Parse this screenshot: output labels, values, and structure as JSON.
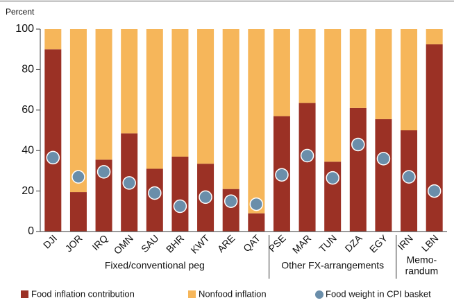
{
  "chart_data": {
    "type": "stacked_bar_dot",
    "y_label": "Percent",
    "categories": [
      "DJI",
      "JOR",
      "IRQ",
      "OMN",
      "SAU",
      "BHR",
      "KWT",
      "ARE",
      "QAT",
      "PSE",
      "MAR",
      "TUN",
      "DZA",
      "EGY",
      "IRN",
      "LBN"
    ],
    "series": [
      {
        "name": "Food inflation contribution",
        "color": "#9b3125",
        "kind": "bar",
        "values": [
          90,
          19.5,
          35.5,
          48.5,
          31,
          37,
          33.5,
          21,
          9,
          57,
          63.5,
          34.5,
          61,
          55.5,
          50,
          92.5
        ]
      },
      {
        "name": "Nonfood inflation",
        "color": "#f6b65a",
        "kind": "bar",
        "values": [
          10,
          80.5,
          64.5,
          51.5,
          69,
          63,
          66.5,
          79,
          91,
          43,
          36.5,
          65.5,
          39,
          44.5,
          50,
          7.5
        ]
      },
      {
        "name": "Food weight in CPI basket",
        "color": "#6a8eaa",
        "kind": "dot",
        "values": [
          36.5,
          27,
          29.5,
          24,
          19,
          12.5,
          17,
          15,
          13.5,
          28,
          37.5,
          26.5,
          43,
          36,
          27,
          20
        ]
      }
    ],
    "groups": [
      {
        "label": [
          "Fixed/conventional peg"
        ],
        "categories": [
          "DJI",
          "JOR",
          "IRQ",
          "OMN",
          "SAU",
          "BHR",
          "KWT",
          "ARE",
          "QAT"
        ]
      },
      {
        "label": [
          "Other FX-arrangements"
        ],
        "categories": [
          "PSE",
          "MAR",
          "TUN",
          "DZA",
          "EGY"
        ]
      },
      {
        "label": [
          "Memo-",
          "randum"
        ],
        "categories": [
          "IRN",
          "LBN"
        ]
      }
    ],
    "ylim": [
      0,
      100
    ],
    "yticks": [
      0,
      20,
      40,
      60,
      80,
      100
    ]
  }
}
